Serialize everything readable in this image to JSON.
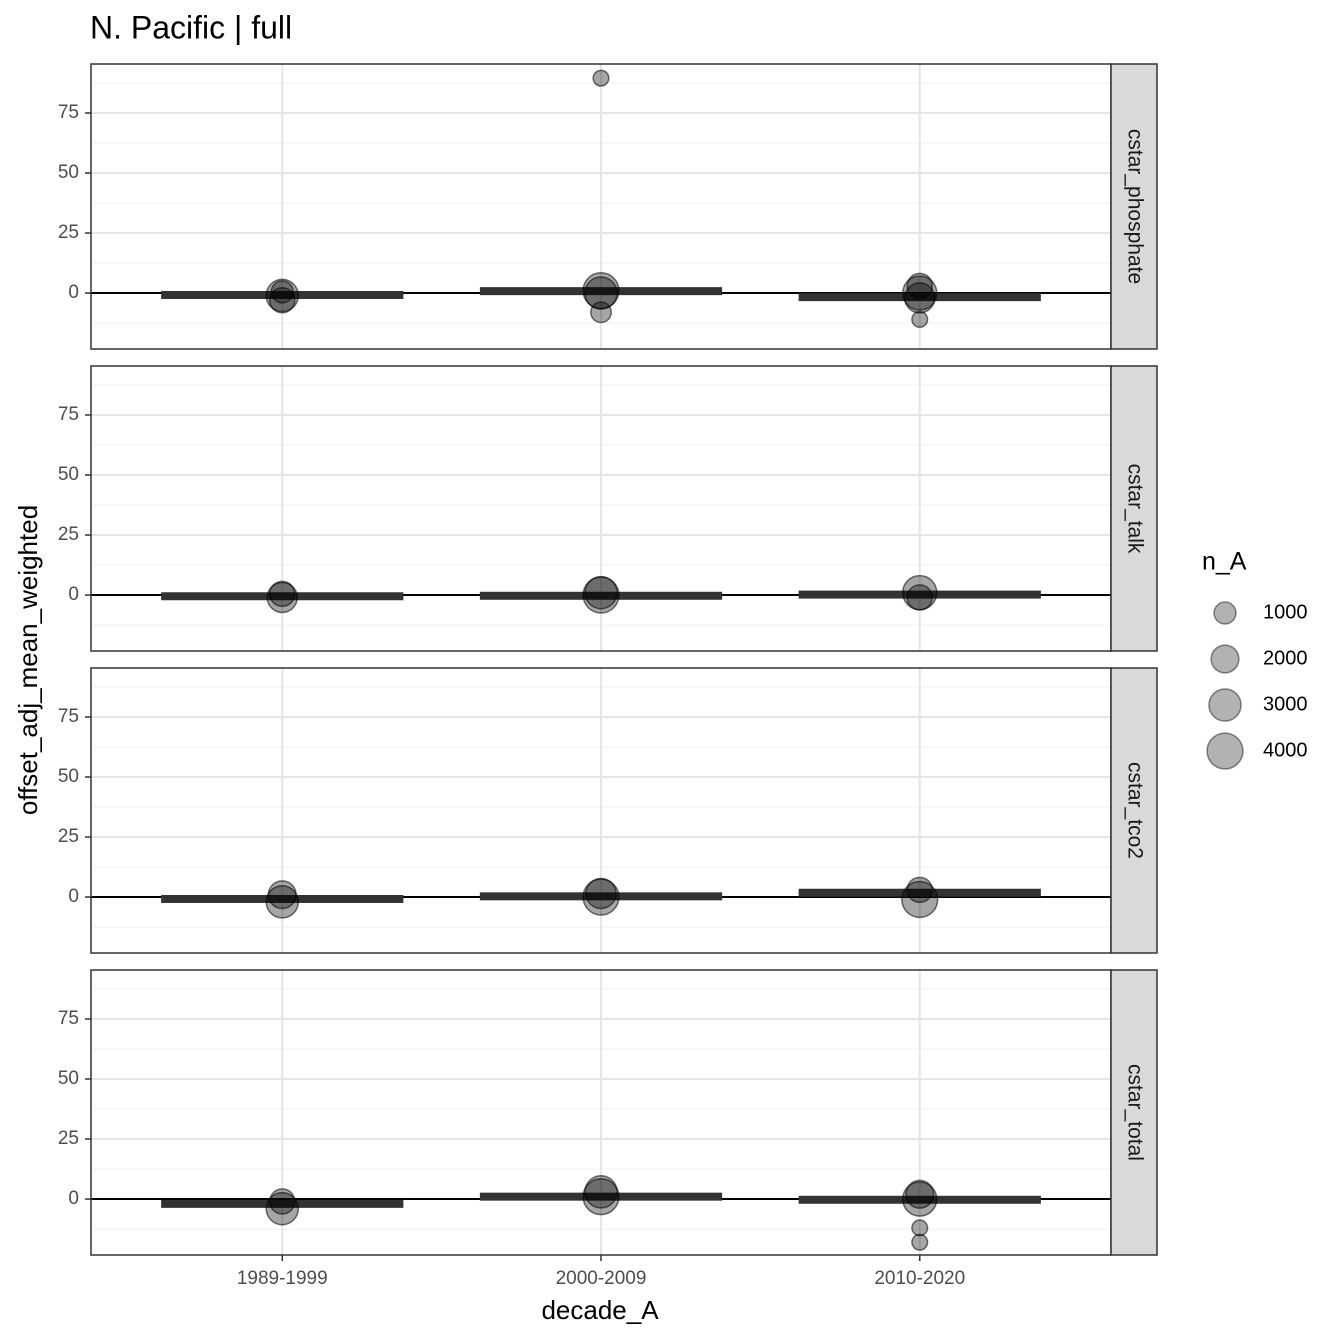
{
  "chart_data": {
    "type": "facet-scatter",
    "title": "N. Pacific | full",
    "x_label": "decade_A",
    "y_label": "offset_adj_mean_weighted",
    "categories": [
      "1989-1999",
      "2000-2009",
      "2010-2020"
    ],
    "ylim": [
      -23.3,
      95.4
    ],
    "yticks": [
      0,
      25,
      50,
      75
    ],
    "minor_yticks": [
      -12.5,
      12.5,
      37.5,
      62.5,
      87.5
    ],
    "reference_line": 0,
    "grid": true,
    "size_legend": {
      "title": "n_A",
      "values": [
        1000,
        2000,
        3000,
        4000
      ],
      "position": "right"
    },
    "facets": [
      {
        "label": "cstar_phosphate",
        "means": [
          -0.8,
          0.8,
          -1.7
        ],
        "points": {
          "x": [
            "1989-1999",
            "1989-1999",
            "1989-1999",
            "2000-2009",
            "2000-2009",
            "2000-2009",
            "2000-2009",
            "2010-2020",
            "2010-2020",
            "2010-2020",
            "2010-2020"
          ],
          "y": [
            -1,
            -3,
            0.5,
            89.5,
            -8,
            1,
            0,
            -11,
            0,
            3,
            -2
          ],
          "n_A": [
            3000,
            1500,
            1000,
            300,
            800,
            4000,
            3000,
            300,
            3500,
            1500,
            2500
          ]
        }
      },
      {
        "label": "cstar_talk",
        "means": [
          -0.5,
          -0.3,
          0.2
        ],
        "points": {
          "x": [
            "1989-1999",
            "1989-1999",
            "2000-2009",
            "2000-2009",
            "2010-2020",
            "2010-2020"
          ],
          "y": [
            -1,
            0.5,
            0,
            1,
            1,
            -1
          ],
          "n_A": [
            2500,
            1500,
            4000,
            3000,
            3500,
            1500
          ]
        }
      },
      {
        "label": "cstar_tco2",
        "means": [
          -0.8,
          0.3,
          1.8
        ],
        "points": {
          "x": [
            "1989-1999",
            "1989-1999",
            "2000-2009",
            "2000-2009",
            "2010-2020",
            "2010-2020"
          ],
          "y": [
            -2,
            1,
            0,
            1.5,
            -1,
            3
          ],
          "n_A": [
            3000,
            2000,
            4000,
            2500,
            4000,
            1500
          ]
        }
      },
      {
        "label": "cstar_total",
        "means": [
          -2,
          1,
          -0.3
        ],
        "points": {
          "x": [
            "1989-1999",
            "1989-1999",
            "2000-2009",
            "2000-2009",
            "2010-2020",
            "2010-2020",
            "2010-2020",
            "2010-2020"
          ],
          "y": [
            -4,
            -1,
            1,
            3,
            0,
            2,
            -12,
            -18
          ],
          "n_A": [
            3000,
            1500,
            4000,
            3000,
            3500,
            2000,
            300,
            300
          ]
        }
      }
    ]
  }
}
